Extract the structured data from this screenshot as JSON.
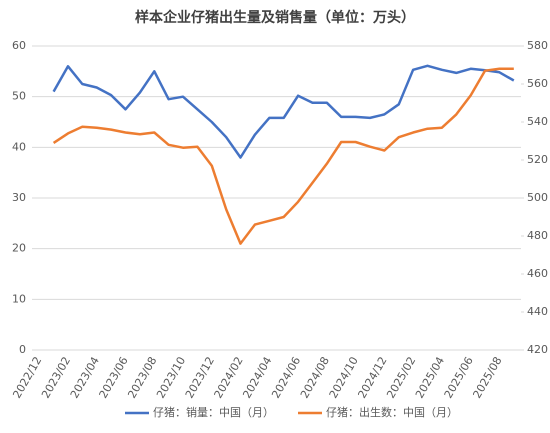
{
  "chart_data": {
    "type": "line",
    "title": "样本企业仔猪出生量及销售量（单位：万头）",
    "categories": [
      "2022/12",
      null,
      "2023/02",
      null,
      "2023/04",
      null,
      "2023/06",
      null,
      "2023/08",
      null,
      "2023/10",
      null,
      "2023/12",
      null,
      "2024/02",
      null,
      "2024/04",
      null,
      "2024/06",
      null,
      "2024/08",
      null,
      "2024/10",
      null,
      "2024/12",
      null,
      "2025/02",
      null,
      "2025/04",
      null,
      "2025/06",
      null,
      "2025/08",
      null
    ],
    "series": [
      {
        "name": "仔猪：销量：中国（月）",
        "color": "#4472c4",
        "axis": "y",
        "values": [
          null,
          51,
          56,
          52.5,
          51.8,
          50.3,
          47.5,
          50.8,
          55,
          49.5,
          50,
          47.5,
          45,
          42,
          38,
          42.5,
          45.8,
          45.8,
          50.2,
          48.8,
          48.8,
          46,
          46,
          45.8,
          46.5,
          48.5,
          55.3,
          56.1,
          55.3,
          54.7,
          55.5,
          55.2,
          54.8,
          53.2
        ]
      },
      {
        "name": "仔猪：出生数：中国（月）",
        "color": "#ed7d31",
        "axis": "y2",
        "values": [
          null,
          529,
          534,
          537.5,
          537,
          536,
          534.5,
          533.5,
          534.5,
          528,
          526.5,
          527,
          517,
          494,
          476,
          486,
          488,
          490,
          498,
          508,
          518,
          529.5,
          529.5,
          527,
          525,
          532,
          534.5,
          536.5,
          537,
          544,
          554,
          567,
          568,
          568
        ]
      }
    ],
    "ylim": [
      0,
      60
    ],
    "yticks": [
      0,
      10,
      20,
      30,
      40,
      50,
      60
    ],
    "y2lim": [
      420,
      580
    ],
    "y2ticks": [
      420,
      440,
      460,
      480,
      500,
      520,
      540,
      560,
      580
    ],
    "grid": true
  }
}
